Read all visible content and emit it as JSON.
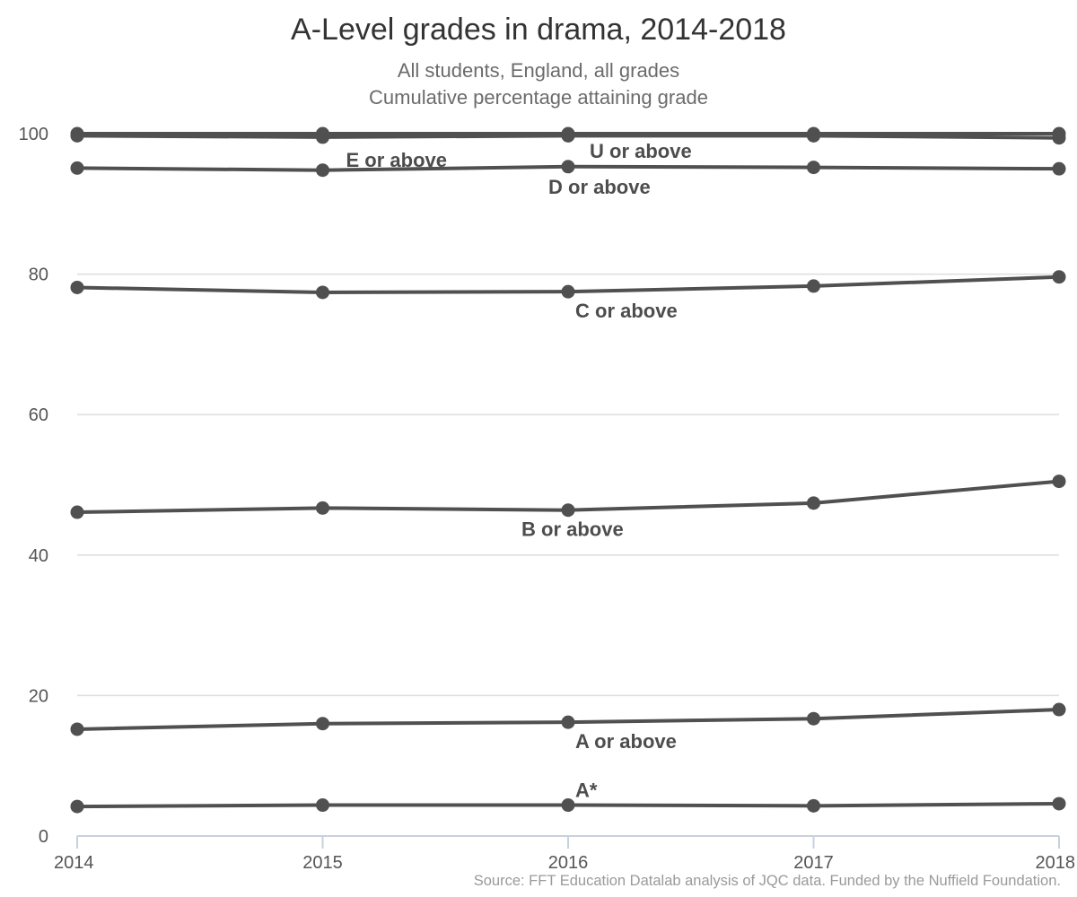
{
  "title": "A-Level grades in drama, 2014-2018",
  "subtitle_line1": "All students, England, all grades",
  "subtitle_line2": "Cumulative percentage attaining grade",
  "caption": "Source: FFT Education Datalab analysis of JQC data. Funded by the Nuffield Foundation.",
  "colors": {
    "line": "#505050",
    "grid": "#dddddd",
    "axis": "#c8d2dc"
  },
  "chart_data": {
    "type": "line",
    "title": "A-Level grades in drama, 2014-2018",
    "subtitle": "All students, England, all grades / Cumulative percentage attaining grade",
    "xlabel": "",
    "ylabel": "",
    "categories": [
      "2014",
      "2015",
      "2016",
      "2017",
      "2018"
    ],
    "ylim": [
      0,
      100
    ],
    "yticks": [
      0,
      20,
      40,
      60,
      80,
      100
    ],
    "grid": "horizontal",
    "legend": "none",
    "series": [
      {
        "name": "U or above",
        "values": [
          100,
          100,
          100,
          100,
          100
        ]
      },
      {
        "name": "E or above",
        "values": [
          99.7,
          99.5,
          99.7,
          99.7,
          99.4
        ]
      },
      {
        "name": "D or above",
        "values": [
          95.1,
          94.8,
          95.3,
          95.2,
          95.0
        ]
      },
      {
        "name": "C or above",
        "values": [
          78.1,
          77.4,
          77.5,
          78.3,
          79.6
        ]
      },
      {
        "name": "B or above",
        "values": [
          46.1,
          46.7,
          46.4,
          47.4,
          50.5
        ]
      },
      {
        "name": "A or above",
        "values": [
          15.2,
          16.0,
          16.2,
          16.7,
          18.0
        ]
      },
      {
        "name": "A*",
        "values": [
          4.2,
          4.4,
          4.4,
          4.3,
          4.6
        ]
      }
    ]
  }
}
